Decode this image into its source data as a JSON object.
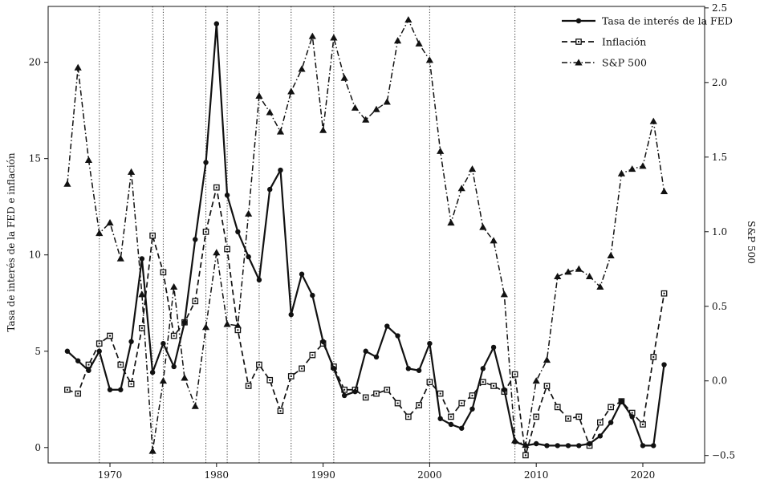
{
  "chart_data": {
    "type": "line",
    "title": "",
    "xlabel": "",
    "ylabel": "Tasa de interés de la FED e inflación",
    "y2label": "S&P 500",
    "xlim": [
      1964.2,
      2025.8
    ],
    "ylim": [
      -0.8,
      22.9
    ],
    "y2lim": [
      -0.55,
      2.51
    ],
    "x_ticks": [
      1970,
      1980,
      1990,
      2000,
      2010,
      2020
    ],
    "y_ticks": [
      0,
      5,
      10,
      15,
      20
    ],
    "y2_ticks": [
      -0.5,
      0.0,
      0.5,
      1.0,
      1.5,
      2.0,
      2.5
    ],
    "y2_tick_labels": [
      "−0.5",
      "0.0",
      "0.5",
      "1.0",
      "1.5",
      "2.0",
      "2.5"
    ],
    "grid": false,
    "legend_position": "top-right",
    "vertical_markers": [
      1969,
      1974,
      1975,
      1979,
      1981,
      1984,
      1987,
      1991,
      2000,
      2008
    ],
    "series": [
      {
        "name": "Tasa de interés de la FED",
        "axis": "left",
        "style": "solid-circle",
        "x": [
          1966,
          1967,
          1968,
          1969,
          1970,
          1971,
          1972,
          1973,
          1974,
          1975,
          1976,
          1977,
          1978,
          1979,
          1980,
          1981,
          1982,
          1983,
          1984,
          1985,
          1986,
          1987,
          1988,
          1989,
          1990,
          1991,
          1992,
          1993,
          1994,
          1995,
          1996,
          1997,
          1998,
          1999,
          2000,
          2001,
          2002,
          2003,
          2004,
          2005,
          2006,
          2007,
          2008,
          2009,
          2010,
          2011,
          2012,
          2013,
          2014,
          2015,
          2016,
          2017,
          2018,
          2019,
          2020,
          2021,
          2022
        ],
        "values": [
          5.0,
          4.5,
          4.0,
          5.0,
          3.0,
          3.0,
          5.5,
          9.8,
          3.9,
          5.4,
          4.2,
          6.5,
          10.8,
          14.8,
          22.0,
          13.1,
          11.2,
          9.9,
          8.7,
          13.4,
          14.4,
          6.9,
          9.0,
          7.9,
          5.5,
          4.1,
          2.7,
          2.9,
          5.0,
          4.7,
          6.3,
          5.8,
          4.1,
          4.0,
          5.4,
          1.5,
          1.2,
          1.0,
          2.0,
          4.1,
          5.2,
          3.0,
          0.3,
          0.1,
          0.2,
          0.1,
          0.1,
          0.1,
          0.1,
          0.2,
          0.6,
          1.3,
          2.4,
          1.6,
          0.1,
          0.1,
          4.3
        ]
      },
      {
        "name": "Inflación",
        "axis": "left",
        "style": "dashed-square",
        "x": [
          1966,
          1967,
          1968,
          1969,
          1970,
          1971,
          1972,
          1973,
          1974,
          1975,
          1976,
          1977,
          1978,
          1979,
          1980,
          1981,
          1982,
          1983,
          1984,
          1985,
          1986,
          1987,
          1988,
          1989,
          1990,
          1991,
          1992,
          1993,
          1994,
          1995,
          1996,
          1997,
          1998,
          1999,
          2000,
          2001,
          2002,
          2003,
          2004,
          2005,
          2006,
          2007,
          2008,
          2009,
          2010,
          2011,
          2012,
          2013,
          2014,
          2015,
          2016,
          2017,
          2018,
          2019,
          2020,
          2021,
          2022
        ],
        "values": [
          3.0,
          2.8,
          4.3,
          5.4,
          5.8,
          4.3,
          3.3,
          6.2,
          11.0,
          9.1,
          5.8,
          6.5,
          7.6,
          11.2,
          13.5,
          10.3,
          6.1,
          3.2,
          4.3,
          3.5,
          1.9,
          3.7,
          4.1,
          4.8,
          5.4,
          4.2,
          3.0,
          3.0,
          2.6,
          2.8,
          3.0,
          2.3,
          1.6,
          2.2,
          3.4,
          2.8,
          1.6,
          2.3,
          2.7,
          3.4,
          3.2,
          2.9,
          3.8,
          -0.4,
          1.6,
          3.2,
          2.1,
          1.5,
          1.6,
          0.1,
          1.3,
          2.1,
          2.4,
          1.8,
          1.2,
          4.7,
          8.0
        ]
      },
      {
        "name": "S&P 500",
        "axis": "right",
        "style": "dashdot-triangle",
        "x": [
          1966,
          1967,
          1968,
          1969,
          1970,
          1971,
          1972,
          1973,
          1974,
          1975,
          1976,
          1977,
          1978,
          1979,
          1980,
          1981,
          1982,
          1983,
          1984,
          1985,
          1986,
          1987,
          1988,
          1989,
          1990,
          1991,
          1992,
          1993,
          1994,
          1995,
          1996,
          1997,
          1998,
          1999,
          2000,
          2001,
          2002,
          2003,
          2004,
          2005,
          2006,
          2007,
          2008,
          2009,
          2010,
          2011,
          2012,
          2013,
          2014,
          2015,
          2016,
          2017,
          2018,
          2019,
          2020,
          2021,
          2022
        ],
        "values": [
          1.32,
          2.1,
          1.48,
          0.99,
          1.06,
          0.82,
          1.4,
          0.58,
          -0.47,
          0.0,
          0.63,
          0.02,
          -0.17,
          0.36,
          0.86,
          0.38,
          0.37,
          1.12,
          1.91,
          1.8,
          1.67,
          1.94,
          2.09,
          2.31,
          1.68,
          2.3,
          2.03,
          1.83,
          1.75,
          1.82,
          1.87,
          2.28,
          2.42,
          2.26,
          2.15,
          1.54,
          1.06,
          1.29,
          1.42,
          1.03,
          0.94,
          0.58,
          -0.4,
          -0.43,
          0.0,
          0.14,
          0.7,
          0.73,
          0.75,
          0.7,
          0.63,
          0.84,
          1.39,
          1.42,
          1.44,
          1.74,
          1.27
        ]
      }
    ]
  }
}
